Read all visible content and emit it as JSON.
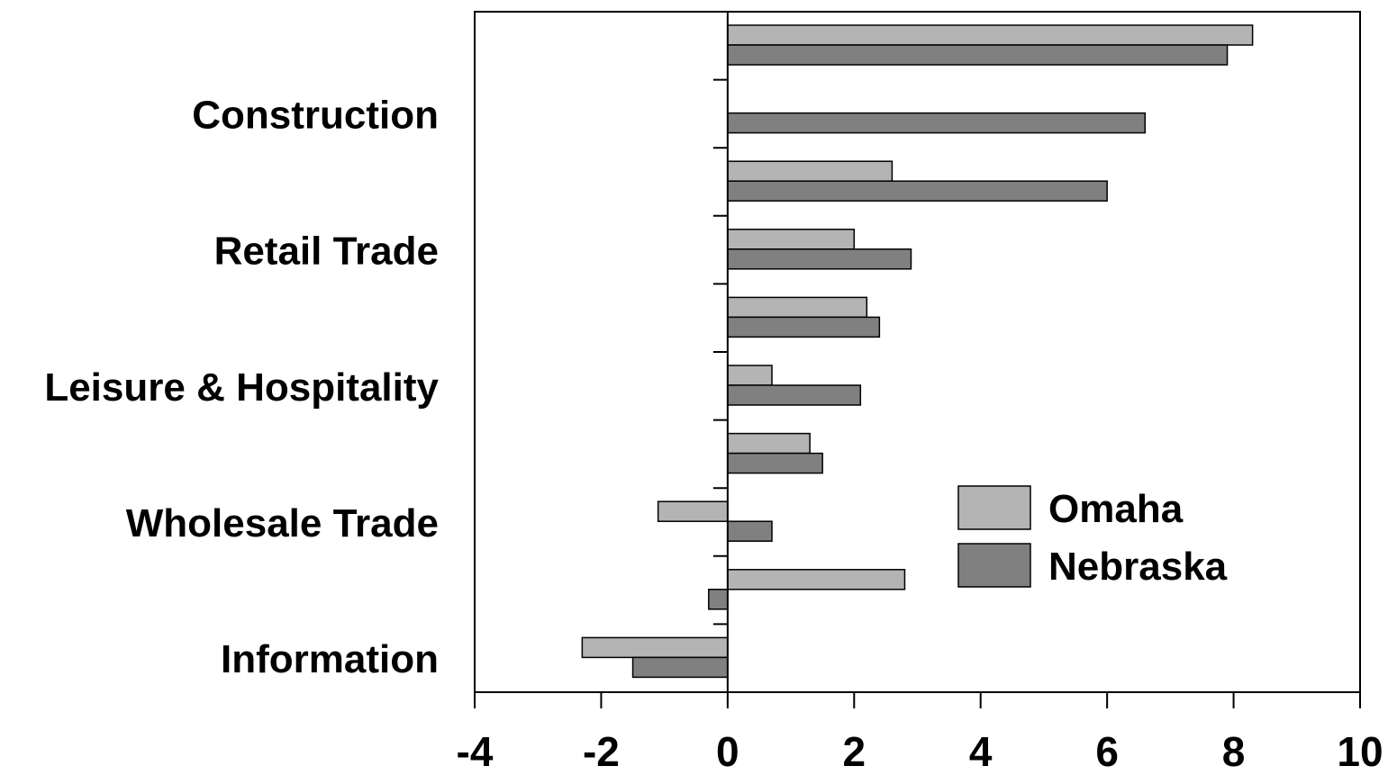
{
  "chart_data": {
    "type": "bar",
    "orientation": "horizontal",
    "title": "",
    "xlabel": "",
    "ylabel": "",
    "xlim": [
      -4,
      10
    ],
    "xticks": [
      -4,
      -2,
      0,
      2,
      4,
      6,
      8,
      10
    ],
    "grid": false,
    "legend_position": "bottom-right",
    "category_labels_shown": [
      "Construction",
      "Retail Trade",
      "Leisure & Hospitality",
      "Wholesale Trade",
      "Information"
    ],
    "categories": [
      "",
      "Construction",
      "",
      "Retail Trade",
      "",
      "Leisure & Hospitality",
      "",
      "Wholesale Trade",
      "",
      "Information"
    ],
    "series": [
      {
        "name": "Omaha",
        "color": "#b4b4b4",
        "values": [
          8.3,
          0,
          2.6,
          2.0,
          2.2,
          0.7,
          1.3,
          -1.1,
          2.8,
          -2.3
        ]
      },
      {
        "name": "Nebraska",
        "color": "#808080",
        "values": [
          7.9,
          6.6,
          6.0,
          2.9,
          2.4,
          2.1,
          1.5,
          0.7,
          -0.3,
          -1.5
        ]
      }
    ]
  }
}
